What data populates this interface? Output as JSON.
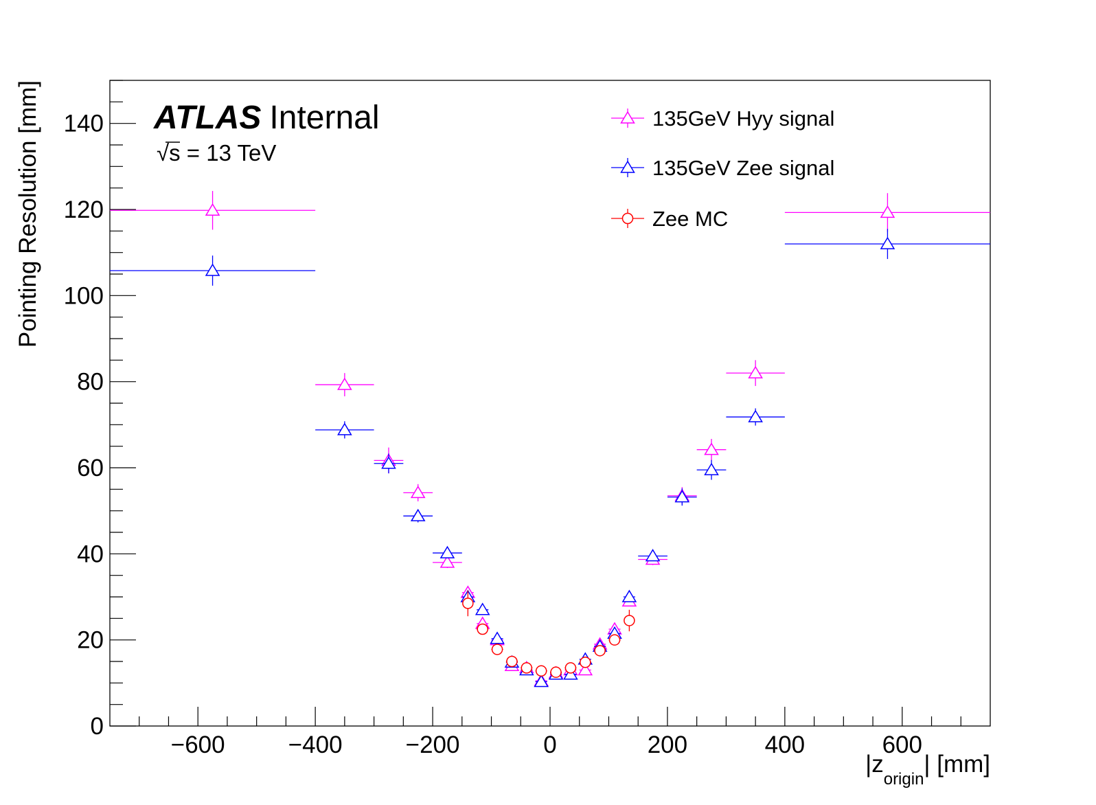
{
  "chart_data": {
    "type": "scatter",
    "xlabel_main": "|z",
    "xlabel_sub": "origin",
    "xlabel_unit": "| [mm]",
    "ylabel": "Pointing Resolution [mm]",
    "xlim": [
      -750,
      750
    ],
    "ylim": [
      0,
      150
    ],
    "x_major_ticks": [
      -600,
      -400,
      -200,
      0,
      200,
      400,
      600
    ],
    "x_tick_labels": [
      "−600",
      "−400",
      "−200",
      "0",
      "200",
      "400",
      "600"
    ],
    "y_major_ticks": [
      0,
      20,
      40,
      60,
      80,
      100,
      120,
      140
    ],
    "y_tick_labels": [
      "0",
      "20",
      "40",
      "60",
      "80",
      "100",
      "120",
      "140"
    ],
    "atlas_label": "ATLAS",
    "atlas_status": "Internal",
    "energy_sqrt": "√s",
    "energy_value": " = 13 TeV",
    "legend_position": "top-right",
    "series": [
      {
        "name": "135GeV Hyy signal",
        "color": "#ff00ff",
        "marker": "open-triangle",
        "points": [
          {
            "x": -575,
            "xerr": 175,
            "y": 119.8,
            "yerr": 4.5
          },
          {
            "x": -350,
            "xerr": 50,
            "y": 79.3,
            "yerr": 2.7
          },
          {
            "x": -275,
            "xerr": 25,
            "y": 61.7,
            "yerr": 3.0
          },
          {
            "x": -225,
            "xerr": 25,
            "y": 54.2,
            "yerr": 2.0
          },
          {
            "x": -175,
            "xerr": 25,
            "y": 38.0,
            "yerr": 1.3
          },
          {
            "x": -140,
            "xerr": 10,
            "y": 31.0,
            "yerr": 1.0
          },
          {
            "x": -115,
            "xerr": 10,
            "y": 23.8,
            "yerr": 0.8
          },
          {
            "x": -90,
            "xerr": 10,
            "y": 20.0,
            "yerr": 0.6
          },
          {
            "x": -65,
            "xerr": 10,
            "y": 14.0,
            "yerr": 0.5
          },
          {
            "x": -40,
            "xerr": 10,
            "y": 13.5,
            "yerr": 0.4
          },
          {
            "x": -15,
            "xerr": 10,
            "y": 10.5,
            "yerr": 0.4
          },
          {
            "x": 10,
            "xerr": 10,
            "y": 12.3,
            "yerr": 0.4
          },
          {
            "x": 35,
            "xerr": 10,
            "y": 13.0,
            "yerr": 0.4
          },
          {
            "x": 60,
            "xerr": 10,
            "y": 13.0,
            "yerr": 0.5
          },
          {
            "x": 85,
            "xerr": 10,
            "y": 19.0,
            "yerr": 0.6
          },
          {
            "x": 110,
            "xerr": 10,
            "y": 22.5,
            "yerr": 0.8
          },
          {
            "x": 135,
            "xerr": 10,
            "y": 29.0,
            "yerr": 1.0
          },
          {
            "x": 175,
            "xerr": 25,
            "y": 38.7,
            "yerr": 1.3
          },
          {
            "x": 225,
            "xerr": 25,
            "y": 53.5,
            "yerr": 2.0
          },
          {
            "x": 275,
            "xerr": 25,
            "y": 64.2,
            "yerr": 2.5
          },
          {
            "x": 350,
            "xerr": 50,
            "y": 82.0,
            "yerr": 3.0
          },
          {
            "x": 575,
            "xerr": 175,
            "y": 119.3,
            "yerr": 4.5
          }
        ]
      },
      {
        "name": "135GeV Zee signal",
        "color": "#0000ff",
        "marker": "open-triangle",
        "points": [
          {
            "x": -575,
            "xerr": 175,
            "y": 105.8,
            "yerr": 3.5
          },
          {
            "x": -350,
            "xerr": 50,
            "y": 68.8,
            "yerr": 2.0
          },
          {
            "x": -275,
            "xerr": 25,
            "y": 61.0,
            "yerr": 2.3
          },
          {
            "x": -225,
            "xerr": 25,
            "y": 48.8,
            "yerr": 1.5
          },
          {
            "x": -175,
            "xerr": 25,
            "y": 40.2,
            "yerr": 1.2
          },
          {
            "x": -140,
            "xerr": 10,
            "y": 30.0,
            "yerr": 0.8
          },
          {
            "x": -115,
            "xerr": 10,
            "y": 27.0,
            "yerr": 0.8
          },
          {
            "x": -90,
            "xerr": 10,
            "y": 20.3,
            "yerr": 0.6
          },
          {
            "x": -65,
            "xerr": 10,
            "y": 14.8,
            "yerr": 0.5
          },
          {
            "x": -40,
            "xerr": 10,
            "y": 13.0,
            "yerr": 0.4
          },
          {
            "x": -15,
            "xerr": 10,
            "y": 10.3,
            "yerr": 0.4
          },
          {
            "x": 10,
            "xerr": 10,
            "y": 12.0,
            "yerr": 0.4
          },
          {
            "x": 35,
            "xerr": 10,
            "y": 12.0,
            "yerr": 0.4
          },
          {
            "x": 60,
            "xerr": 10,
            "y": 15.5,
            "yerr": 0.5
          },
          {
            "x": 85,
            "xerr": 10,
            "y": 18.5,
            "yerr": 0.6
          },
          {
            "x": 110,
            "xerr": 10,
            "y": 21.5,
            "yerr": 0.7
          },
          {
            "x": 135,
            "xerr": 10,
            "y": 30.0,
            "yerr": 1.0
          },
          {
            "x": 175,
            "xerr": 25,
            "y": 39.5,
            "yerr": 1.2
          },
          {
            "x": 225,
            "xerr": 25,
            "y": 53.2,
            "yerr": 2.0
          },
          {
            "x": 275,
            "xerr": 25,
            "y": 59.5,
            "yerr": 2.3
          },
          {
            "x": 350,
            "xerr": 50,
            "y": 71.8,
            "yerr": 2.0
          },
          {
            "x": 575,
            "xerr": 175,
            "y": 112.0,
            "yerr": 3.5
          }
        ]
      },
      {
        "name": "Zee MC",
        "color": "#ff0000",
        "marker": "open-circle",
        "points": [
          {
            "x": -140,
            "xerr": 0,
            "y": 28.5,
            "yerr": 3.0
          },
          {
            "x": -115,
            "xerr": 10,
            "y": 22.5,
            "yerr": 1.2
          },
          {
            "x": -90,
            "xerr": 10,
            "y": 17.8,
            "yerr": 0.8
          },
          {
            "x": -65,
            "xerr": 10,
            "y": 15.0,
            "yerr": 0.6
          },
          {
            "x": -40,
            "xerr": 10,
            "y": 13.5,
            "yerr": 0.5
          },
          {
            "x": -15,
            "xerr": 10,
            "y": 12.8,
            "yerr": 0.4
          },
          {
            "x": 10,
            "xerr": 10,
            "y": 12.5,
            "yerr": 0.4
          },
          {
            "x": 35,
            "xerr": 10,
            "y": 13.5,
            "yerr": 0.5
          },
          {
            "x": 60,
            "xerr": 10,
            "y": 14.8,
            "yerr": 0.6
          },
          {
            "x": 85,
            "xerr": 10,
            "y": 17.5,
            "yerr": 0.8
          },
          {
            "x": 110,
            "xerr": 10,
            "y": 20.0,
            "yerr": 1.0
          },
          {
            "x": 135,
            "xerr": 0,
            "y": 24.5,
            "yerr": 2.5
          }
        ]
      }
    ]
  }
}
